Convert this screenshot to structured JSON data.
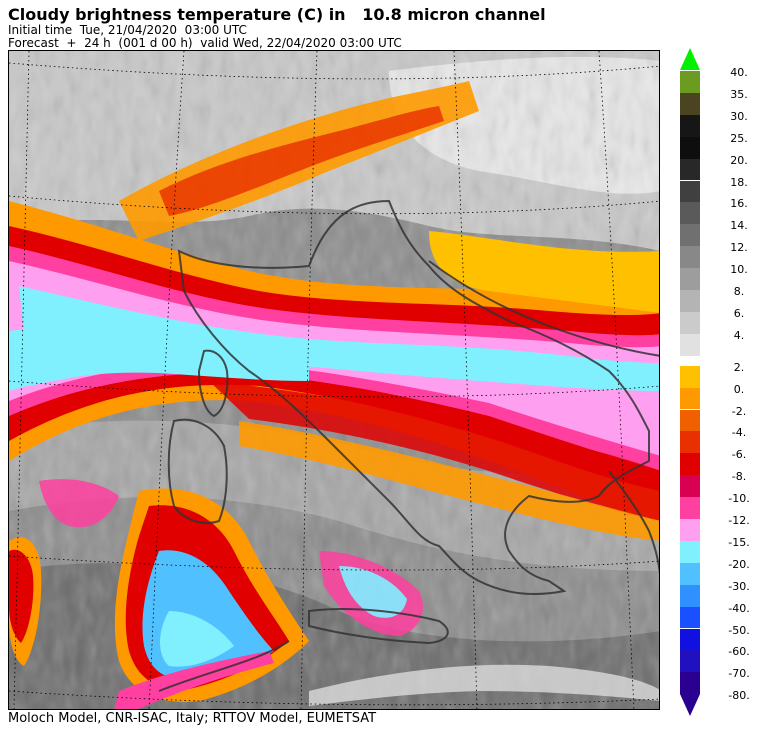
{
  "header": {
    "title": "Cloudy brightness temperature (C) in   10.8 micron channel",
    "initial_time": "Initial time  Tue, 21/04/2020  03:00 UTC",
    "forecast": "Forecast  +  24 h  (001 d 00 h)  valid Wed, 22/04/2020 03:00 UTC"
  },
  "footer": {
    "credit": "Moloch Model, CNR-ISAC, Italy; RTTOV Model, EUMETSAT"
  },
  "legend": {
    "top_arrow_color": "#00f000",
    "bottom_arrow_color": "#2a0090",
    "classes": [
      {
        "label": "40.",
        "color": "#6b9b20"
      },
      {
        "label": "35.",
        "color": "#4b4420"
      },
      {
        "label": "30.",
        "color": "#161616"
      },
      {
        "label": "25.",
        "color": "#0e0e0e"
      },
      {
        "label": "20.",
        "color": "#282828"
      },
      {
        "label": "18.",
        "color": "#404040"
      },
      {
        "label": "16.",
        "color": "#5a5a5a"
      },
      {
        "label": "14.",
        "color": "#707070"
      },
      {
        "label": "12.",
        "color": "#888888"
      },
      {
        "label": "10.",
        "color": "#9d9d9d"
      },
      {
        "label": "8.",
        "color": "#b4b4b4"
      },
      {
        "label": "6.",
        "color": "#cbcbcb"
      },
      {
        "label": "4.",
        "color": "#e1e1e1"
      },
      {
        "label": "2.",
        "color": "#ffc000"
      },
      {
        "label": "0.",
        "color": "#ff9900"
      },
      {
        "label": "-2.",
        "color": "#f06000"
      },
      {
        "label": "-4.",
        "color": "#e83000"
      },
      {
        "label": "-6.",
        "color": "#e00000"
      },
      {
        "label": "-8.",
        "color": "#d80050"
      },
      {
        "label": "-10.",
        "color": "#ff40a0"
      },
      {
        "label": "-12.",
        "color": "#ff9ff0"
      },
      {
        "label": "-15.",
        "color": "#80f0ff"
      },
      {
        "label": "-20.",
        "color": "#50c0ff"
      },
      {
        "label": "-30.",
        "color": "#3090ff"
      },
      {
        "label": "-40.",
        "color": "#1a50ff"
      },
      {
        "label": "-50.",
        "color": "#1010e0"
      },
      {
        "label": "-60.",
        "color": "#2010c0"
      },
      {
        "label": "-70.",
        "color": "#2a0090"
      },
      {
        "label": "-80.",
        "color": null
      }
    ]
  }
}
